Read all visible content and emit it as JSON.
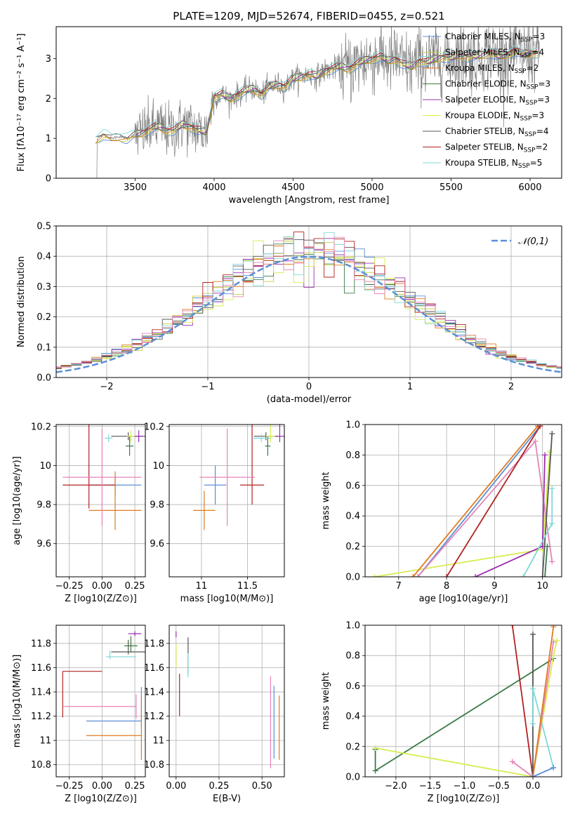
{
  "figure": {
    "title": "PLATE=1209, MJD=52674, FIBERID=0455, z=0.521"
  },
  "colors": {
    "Chabrier MILES": "#5b8fd6",
    "Salpeter MILES": "#cccc44",
    "Kroupa MILES": "#e07b1f",
    "Chabrier ELODIE": "#3a7a45",
    "Salpeter ELODIE": "#9b30b0",
    "Kroupa ELODIE": "#d8ec50",
    "Chabrier STELIB": "#555555",
    "Salpeter STELIB": "#b22222",
    "Kroupa STELIB": "#80d8d8",
    "extra": "#e684b8",
    "data": "#7f7f7f",
    "normal": "#5b8fd6"
  },
  "chart_data": [
    {
      "id": "spectrum",
      "type": "line",
      "title": "PLATE=1209, MJD=52674, FIBERID=0455, z=0.521",
      "xlabel": "wavelength [Angstrom, rest frame]",
      "ylabel": "Flux [fλ10⁻¹⁷ erg cm⁻² s⁻¹ A⁻¹]",
      "xlim": [
        3000,
        6200
      ],
      "ylim": [
        0,
        3.8
      ],
      "xticks": [
        3500,
        4000,
        4500,
        5000,
        5500,
        6000
      ],
      "yticks": [
        0,
        1,
        2,
        3
      ],
      "grid": false,
      "legend_position": "top-right",
      "legend": [
        "Chabrier MILES, NSSP=3",
        "Salpeter MILES, NSSP=4",
        "Kroupa MILES, NSSP=2",
        "Chabrier ELODIE, NSSP=3",
        "Salpeter ELODIE, NSSP=3",
        "Kroupa ELODIE, NSSP=3",
        "Chabrier STELIB, NSSP=4",
        "Salpeter STELIB, NSSP=2",
        "Kroupa STELIB, NSSP=5"
      ],
      "model_continuum": {
        "x": [
          3240,
          3260,
          3300,
          3350,
          3400,
          3450,
          3500,
          3550,
          3600,
          3650,
          3700,
          3750,
          3800,
          3850,
          3900,
          3950,
          4000,
          4050,
          4100,
          4150,
          4200,
          4250,
          4300,
          4350,
          4400,
          4450,
          4500,
          4550,
          4600,
          4650,
          4700,
          4750,
          4800,
          4850,
          4900,
          4950,
          5000,
          5050,
          5100,
          5150,
          5200,
          5250,
          5300,
          5350,
          5400,
          5450,
          5500,
          5550,
          5600,
          5650,
          5700,
          5750,
          5800,
          5850,
          5900,
          5950,
          6000,
          6050
        ],
        "y": [
          0.95,
          1.0,
          1.1,
          1.0,
          1.05,
          1.0,
          1.1,
          1.15,
          1.25,
          1.3,
          1.2,
          1.2,
          1.35,
          1.3,
          1.2,
          1.15,
          2.05,
          2.1,
          2.0,
          2.1,
          2.2,
          2.25,
          2.1,
          2.3,
          2.35,
          2.3,
          2.5,
          2.55,
          2.6,
          2.55,
          2.7,
          2.75,
          2.8,
          2.75,
          2.85,
          2.95,
          3.0,
          3.05,
          2.95,
          3.0,
          2.85,
          2.8,
          2.95,
          2.9,
          3.0,
          3.05,
          3.0,
          3.1,
          3.05,
          3.05,
          3.1,
          3.15,
          3.05,
          3.1,
          3.2,
          3.1,
          3.15,
          3.15
        ]
      }
    },
    {
      "id": "residuals",
      "type": "line",
      "xlabel": "(data-model)/error",
      "ylabel": "Normed distribution",
      "xlim": [
        -2.5,
        2.5
      ],
      "ylim": [
        0,
        0.5
      ],
      "xticks": [
        -2,
        -1,
        0,
        1,
        2
      ],
      "yticks": [
        0.0,
        0.1,
        0.2,
        0.3,
        0.4,
        0.5
      ],
      "grid": true,
      "legend": [
        "𝒩(0,1)"
      ],
      "legend_position": "top-right",
      "bin_width": 0.1
    },
    {
      "id": "age-vs-Z",
      "type": "scatter",
      "xlabel": "Z [log10(Z/Z⊙)]",
      "ylabel": "age [log10(age/yr)]",
      "xlim": [
        -0.35,
        0.33
      ],
      "ylim": [
        9.43,
        10.21
      ],
      "xticks": [
        -0.25,
        0.0,
        0.25
      ],
      "xticklabels": [
        "−0.25",
        "0.00",
        "0.25"
      ],
      "yticks": [
        9.6,
        9.8,
        10.0,
        10.2
      ],
      "grid": true,
      "points": [
        {
          "model": "Chabrier MILES",
          "x": 0.1,
          "y": 9.9,
          "xerr": [
            0.2,
            0.2
          ],
          "yerr": [
            0.05,
            0.05
          ]
        },
        {
          "model": "Kroupa MILES",
          "x": 0.1,
          "y": 9.77,
          "xerr": [
            0.2,
            0.2
          ],
          "yerr": [
            0.1,
            0.2
          ]
        },
        {
          "model": "Salpeter STELIB",
          "x": -0.1,
          "y": 9.9,
          "xerr": [
            0.2,
            0.2
          ],
          "yerr": [
            0.12,
            0.42
          ]
        },
        {
          "model": "extra",
          "x": 0.0,
          "y": 9.94,
          "xerr": [
            0.3,
            0.3
          ],
          "yerr": [
            0.25,
            0.25
          ]
        },
        {
          "model": "Chabrier ELODIE",
          "x": 0.21,
          "y": 10.1,
          "xerr": [
            0.03,
            0.03
          ],
          "yerr": [
            0.05,
            0.05
          ]
        },
        {
          "model": "Chabrier STELIB",
          "x": 0.2,
          "y": 10.15,
          "xerr": [
            0.13,
            0.13
          ],
          "yerr": [
            0.02,
            0.02
          ]
        },
        {
          "model": "Kroupa STELIB",
          "x": 0.05,
          "y": 10.14,
          "xerr": [
            0.03,
            0.03
          ],
          "yerr": [
            0.02,
            0.02
          ]
        },
        {
          "model": "Salpeter ELODIE",
          "x": 0.28,
          "y": 10.15,
          "xerr": [
            0.03,
            0.03
          ],
          "yerr": [
            0.03,
            0.03
          ]
        },
        {
          "model": "Kroupa ELODIE",
          "x": 0.22,
          "y": 10.15,
          "xerr": [
            0.03,
            0.03
          ],
          "yerr": [
            0.03,
            0.03
          ]
        }
      ]
    },
    {
      "id": "age-vs-mass",
      "type": "scatter",
      "xlabel": "mass [log10(M/M⊙)]",
      "xlim": [
        10.65,
        11.9
      ],
      "ylim": [
        9.43,
        10.21
      ],
      "xticks": [
        11.0,
        11.5
      ],
      "yticks": [
        9.6,
        9.8,
        10.0,
        10.2
      ],
      "grid": true,
      "points": [
        {
          "model": "Chabrier MILES",
          "x": 11.15,
          "y": 9.9,
          "xerr": [
            0.12,
            0.12
          ],
          "yerr": [
            0.1,
            0.1
          ]
        },
        {
          "model": "Kroupa MILES",
          "x": 11.03,
          "y": 9.77,
          "xerr": [
            0.12,
            0.12
          ],
          "yerr": [
            0.1,
            0.1
          ]
        },
        {
          "model": "Salpeter STELIB",
          "x": 11.55,
          "y": 9.9,
          "xerr": [
            0.13,
            0.13
          ],
          "yerr": [
            0.1,
            0.43
          ]
        },
        {
          "model": "extra",
          "x": 11.28,
          "y": 9.94,
          "xerr": [
            0.3,
            0.3
          ],
          "yerr": [
            0.25,
            0.25
          ]
        },
        {
          "model": "Chabrier ELODIE",
          "x": 11.72,
          "y": 10.1,
          "xerr": [
            0.03,
            0.03
          ],
          "yerr": [
            0.05,
            0.05
          ]
        },
        {
          "model": "Chabrier STELIB",
          "x": 11.7,
          "y": 10.15,
          "xerr": [
            0.13,
            0.13
          ],
          "yerr": [
            0.02,
            0.02
          ]
        },
        {
          "model": "Kroupa STELIB",
          "x": 11.65,
          "y": 10.14,
          "xerr": [
            0.1,
            0.1
          ],
          "yerr": [
            0.02,
            0.02
          ]
        },
        {
          "model": "Salpeter ELODIE",
          "x": 11.85,
          "y": 10.15,
          "xerr": [
            0.05,
            0.05
          ],
          "yerr": [
            0.03,
            0.23
          ]
        },
        {
          "model": "Kroupa ELODIE",
          "x": 11.75,
          "y": 10.15,
          "xerr": [
            0.05,
            0.05
          ],
          "yerr": [
            0.03,
            0.1
          ]
        }
      ]
    },
    {
      "id": "weight-vs-age",
      "type": "line",
      "xlabel": "age [log10(age/yr)]",
      "ylabel": "mass weight",
      "xlim": [
        6.3,
        10.4
      ],
      "ylim": [
        0,
        1
      ],
      "xticks": [
        7,
        8,
        9,
        10
      ],
      "yticks": [
        0.0,
        0.2,
        0.4,
        0.6,
        0.8,
        1.0
      ],
      "grid": true,
      "series": [
        {
          "model": "Kroupa ELODIE",
          "x": [
            6.5,
            10.0,
            10.1,
            10.15
          ],
          "y": [
            0.0,
            0.18,
            0.6,
            0.82
          ]
        },
        {
          "model": "Kroupa MILES",
          "x": [
            7.3,
            9.9
          ],
          "y": [
            0.0,
            0.99
          ]
        },
        {
          "model": "Chabrier MILES",
          "x": [
            7.4,
            9.95
          ],
          "y": [
            0.0,
            0.99
          ]
        },
        {
          "model": "extra",
          "x": [
            7.4,
            9.85,
            10.2
          ],
          "y": [
            0.0,
            0.89,
            0.1
          ]
        },
        {
          "model": "Salpeter STELIB",
          "x": [
            8.0,
            9.95
          ],
          "y": [
            0.0,
            0.99
          ]
        },
        {
          "model": "Salpeter ELODIE",
          "x": [
            8.6,
            10.0,
            10.05
          ],
          "y": [
            0.0,
            0.2,
            0.8
          ]
        },
        {
          "model": "Chabrier STELIB",
          "x": [
            10.0,
            10.2
          ],
          "y": [
            0.0,
            0.94
          ]
        },
        {
          "model": "Kroupa STELIB",
          "x": [
            9.6,
            10.2,
            10.2
          ],
          "y": [
            0.0,
            0.35,
            0.58
          ]
        },
        {
          "model": "Chabrier ELODIE",
          "x": [
            10.05,
            10.1
          ],
          "y": [
            0.0,
            0.2
          ]
        }
      ]
    },
    {
      "id": "mass-vs-Z",
      "type": "scatter",
      "xlabel": "Z [log10(Z/Z⊙)]",
      "ylabel": "mass [log10(M/M⊙)]",
      "xlim": [
        -0.35,
        0.33
      ],
      "ylim": [
        10.7,
        11.95
      ],
      "xticks": [
        -0.25,
        0.0,
        0.25
      ],
      "xticklabels": [
        "−0.25",
        "0.00",
        "0.25"
      ],
      "yticks": [
        10.8,
        11.0,
        11.2,
        11.4,
        11.6,
        11.8
      ],
      "grid": true,
      "points": [
        {
          "model": "Salpeter ELODIE",
          "x": 0.25,
          "y": 11.88,
          "xerr": [
            0.05,
            0.05
          ],
          "yerr": [
            0.02,
            0.02
          ]
        },
        {
          "model": "Kroupa ELODIE",
          "x": 0.22,
          "y": 11.78,
          "xerr": [
            0.05,
            0.05
          ],
          "yerr": [
            0.06,
            0.06
          ]
        },
        {
          "model": "Chabrier ELODIE",
          "x": 0.22,
          "y": 11.78,
          "xerr": [
            0.05,
            0.05
          ],
          "yerr": [
            0.05,
            0.08
          ]
        },
        {
          "model": "Chabrier STELIB",
          "x": 0.2,
          "y": 11.73,
          "xerr": [
            0.13,
            0.13
          ],
          "yerr": [
            0.02,
            0.1
          ]
        },
        {
          "model": "Kroupa STELIB",
          "x": 0.06,
          "y": 11.69,
          "xerr": [
            0.03,
            0.2
          ],
          "yerr": [
            0.02,
            0.05
          ]
        },
        {
          "model": "Salpeter STELIB",
          "x": -0.3,
          "y": 11.57,
          "xerr": [
            0.0,
            0.3
          ],
          "yerr": [
            0.38,
            0.0
          ]
        },
        {
          "model": "extra",
          "x": 0.26,
          "y": 11.28,
          "xerr": [
            0.56,
            0.0
          ],
          "yerr": [
            0.1,
            0.1
          ]
        },
        {
          "model": "Chabrier MILES",
          "x": 0.3,
          "y": 11.16,
          "xerr": [
            0.42,
            0.0
          ],
          "yerr": [
            0.05,
            0.28
          ]
        },
        {
          "model": "Kroupa MILES",
          "x": 0.3,
          "y": 11.04,
          "xerr": [
            0.42,
            0.0
          ],
          "yerr": [
            0.2,
            0.31
          ]
        }
      ]
    },
    {
      "id": "mass-vs-EBV",
      "type": "scatter",
      "xlabel": "E(B-V)",
      "xlim": [
        -0.04,
        0.63
      ],
      "ylim": [
        10.7,
        11.95
      ],
      "xticks": [
        0.0,
        0.25,
        0.5
      ],
      "xticklabels": [
        "0.00",
        "0.25",
        "0.50"
      ],
      "yticks": [
        10.8,
        11.0,
        11.2,
        11.4,
        11.6,
        11.8
      ],
      "grid": true,
      "points": [
        {
          "model": "Salpeter ELODIE",
          "x": 0.0,
          "y": 11.85,
          "yerr": [
            0.0,
            0.05
          ]
        },
        {
          "model": "Kroupa ELODIE",
          "x": 0.0,
          "y": 11.7,
          "yerr": [
            0.1,
            0.1
          ]
        },
        {
          "model": "Chabrier STELIB",
          "x": 0.07,
          "y": 11.7,
          "yerr": [
            0.15,
            0.15
          ]
        },
        {
          "model": "Kroupa STELIB",
          "x": 0.07,
          "y": 11.62,
          "yerr": [
            0.1,
            0.1
          ]
        },
        {
          "model": "Salpeter STELIB",
          "x": 0.02,
          "y": 11.4,
          "yerr": [
            0.2,
            0.15
          ]
        },
        {
          "model": "extra",
          "x": 0.55,
          "y": 11.25,
          "yerr": [
            0.48,
            0.28
          ]
        },
        {
          "model": "Chabrier MILES",
          "x": 0.57,
          "y": 11.15,
          "yerr": [
            0.3,
            0.3
          ]
        },
        {
          "model": "Kroupa MILES",
          "x": 0.6,
          "y": 11.09,
          "yerr": [
            0.25,
            0.28
          ]
        }
      ]
    },
    {
      "id": "weight-vs-Z",
      "type": "line",
      "xlabel": "Z [log10(Z/Z⊙)]",
      "ylabel": "mass weight",
      "xlim": [
        -2.45,
        0.42
      ],
      "ylim": [
        0,
        1
      ],
      "xticks": [
        -2.0,
        -1.5,
        -1.0,
        -0.5,
        0.0
      ],
      "xticklabels": [
        "−2.0",
        "−1.5",
        "−1.0",
        "−0.5",
        "0.0"
      ],
      "yticks": [
        0.0,
        0.2,
        0.4,
        0.6,
        0.8,
        1.0
      ],
      "grid": true,
      "series": [
        {
          "model": "Chabrier ELODIE",
          "x": [
            -2.3,
            -2.3,
            0.3
          ],
          "y": [
            0.18,
            0.04,
            0.78
          ]
        },
        {
          "model": "Kroupa ELODIE",
          "x": [
            -2.3,
            0.0,
            0.3,
            0.35
          ],
          "y": [
            0.19,
            0.0,
            0.8,
            0.9
          ]
        },
        {
          "model": "Salpeter STELIB",
          "x": [
            -0.3,
            0.0
          ],
          "y": [
            1.0,
            0.0
          ]
        },
        {
          "model": "Chabrier STELIB",
          "x": [
            0.0,
            0.0
          ],
          "y": [
            0.0,
            0.94
          ]
        },
        {
          "model": "Kroupa STELIB",
          "x": [
            0.0,
            0.0,
            0.3
          ],
          "y": [
            0.35,
            0.58,
            0.06
          ]
        },
        {
          "model": "extra",
          "x": [
            -0.3,
            0.0,
            0.3
          ],
          "y": [
            0.1,
            0.0,
            0.89
          ]
        },
        {
          "model": "Kroupa MILES",
          "x": [
            0.0,
            0.3
          ],
          "y": [
            0.0,
            0.99
          ]
        },
        {
          "model": "Chabrier MILES",
          "x": [
            0.0,
            0.3
          ],
          "y": [
            0.0,
            0.06
          ]
        }
      ]
    }
  ]
}
